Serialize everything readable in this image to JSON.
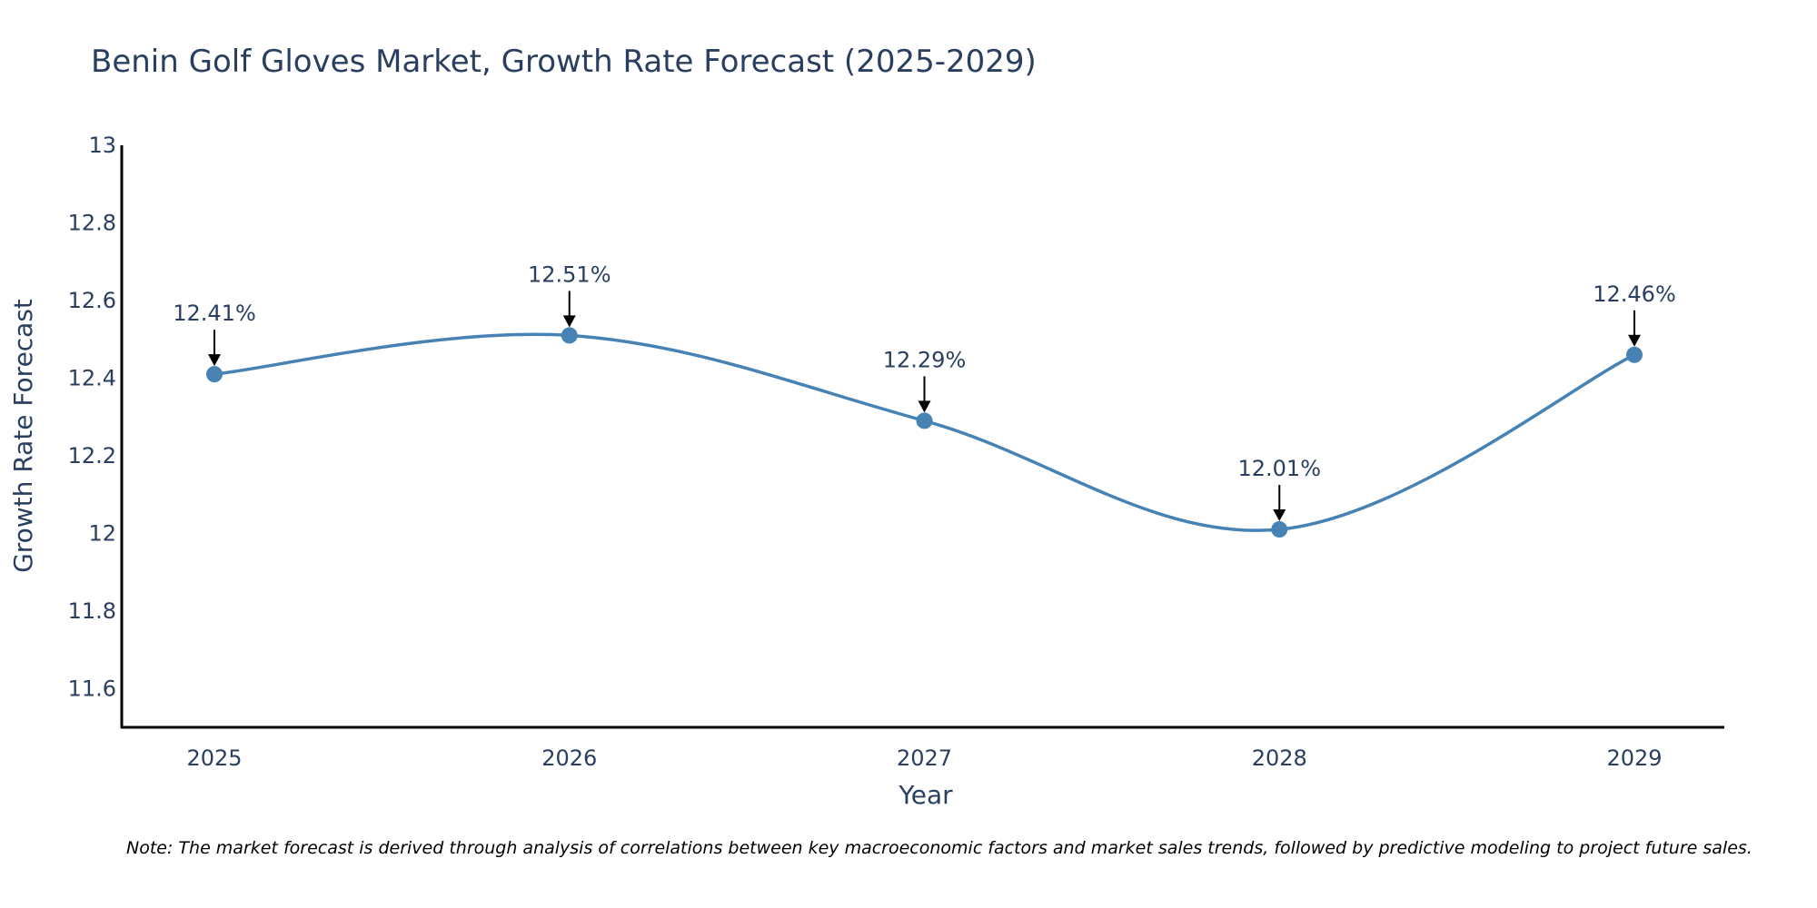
{
  "chart_data": {
    "type": "line",
    "title": "Benin Golf Gloves Market, Growth Rate Forecast (2025-2029)",
    "xlabel": "Year",
    "ylabel": "Growth Rate Forecast",
    "categories": [
      "2025",
      "2026",
      "2027",
      "2028",
      "2029"
    ],
    "values": [
      12.41,
      12.51,
      12.29,
      12.01,
      12.46
    ],
    "data_labels": [
      "12.41%",
      "12.51%",
      "12.29%",
      "12.01%",
      "12.46%"
    ],
    "ylim": [
      11.5,
      13
    ],
    "yticks": [
      11.6,
      11.8,
      12,
      12.2,
      12.4,
      12.6,
      12.8,
      13
    ],
    "ytick_labels": [
      "11.6",
      "11.8",
      "12",
      "12.2",
      "12.4",
      "12.6",
      "12.8",
      "13"
    ],
    "grid": false,
    "line_shape": "spline",
    "note": "Note: The market forecast is derived through analysis of correlations between key macroeconomic factors and market sales trends, followed by predictive modeling to project future sales."
  },
  "colors": {
    "series": "#4682b4",
    "axis": "#000000",
    "text": "#2a3f5f",
    "arrow": "#000000"
  }
}
